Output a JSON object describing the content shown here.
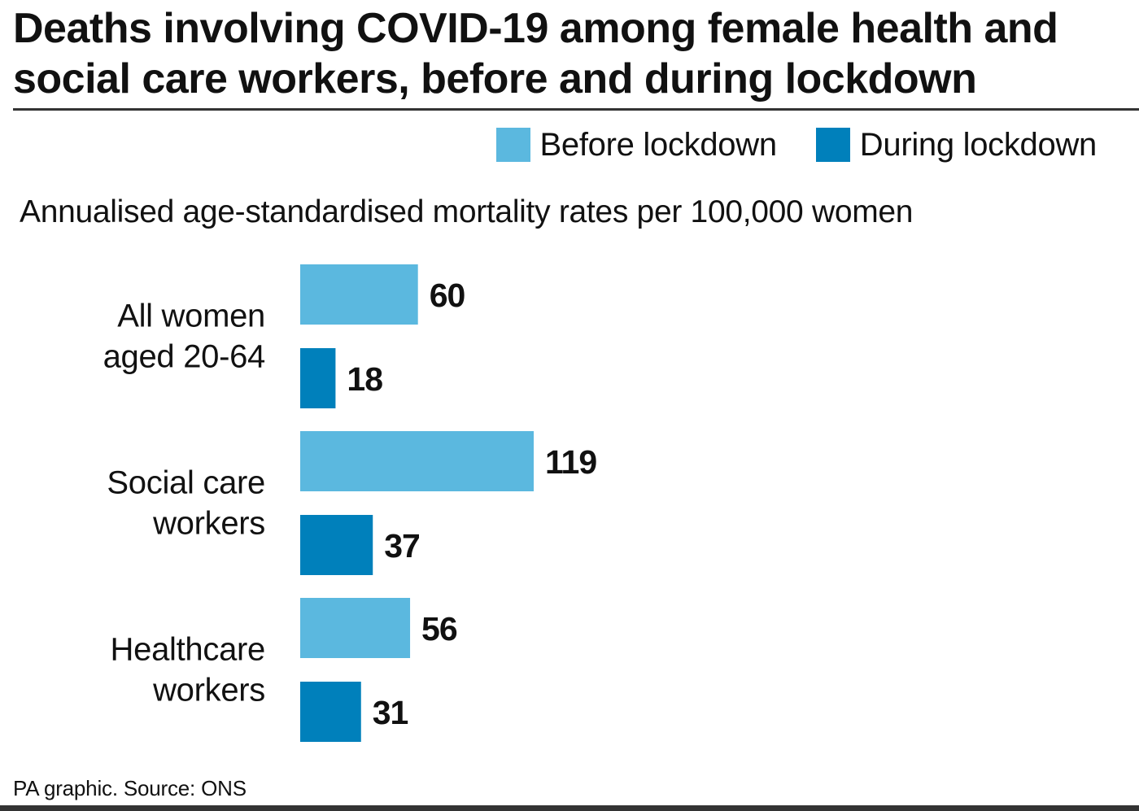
{
  "title": "Deaths involving COVID-19 among female health and social care workers, before and during lockdown",
  "legend": {
    "items": [
      {
        "label": "Before lockdown",
        "color": "#5bb8df"
      },
      {
        "label": "During lockdown",
        "color": "#0080bb"
      }
    ]
  },
  "footer": {
    "source": "PA graphic. Source: ONS"
  },
  "chart_data": {
    "type": "bar",
    "orientation": "horizontal",
    "title": "Deaths involving COVID-19 among female health and social care workers, before and during lockdown",
    "subtitle": "Annualised age-standardised mortality rates per 100,000 women",
    "categories": [
      [
        "All women",
        "aged 20-64"
      ],
      [
        "Social care",
        "workers"
      ],
      [
        "Healthcare",
        "workers"
      ]
    ],
    "series": [
      {
        "name": "Before lockdown",
        "color": "#5bb8df",
        "values": [
          60,
          119,
          56
        ]
      },
      {
        "name": "During lockdown",
        "color": "#0080bb",
        "values": [
          18,
          37,
          31
        ]
      }
    ],
    "xlim": [
      0,
      119
    ],
    "grid": false,
    "legend_position": "top-right",
    "data_labels": true
  }
}
